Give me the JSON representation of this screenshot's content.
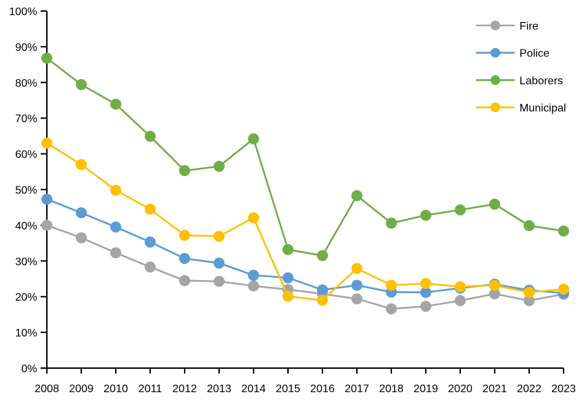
{
  "chart_data": {
    "type": "line",
    "title": "",
    "xlabel": "",
    "ylabel": "",
    "x": [
      2008,
      2009,
      2010,
      2011,
      2012,
      2013,
      2014,
      2015,
      2016,
      2017,
      2018,
      2019,
      2020,
      2021,
      2022,
      2023
    ],
    "series": [
      {
        "name": "Fire",
        "color": "#A5A5A5",
        "values": [
          40.0,
          36.5,
          32.3,
          28.3,
          24.5,
          24.3,
          23.0,
          22.0,
          20.8,
          19.4,
          16.6,
          17.3,
          18.9,
          20.8,
          18.9,
          20.7
        ]
      },
      {
        "name": "Police",
        "color": "#5B9BD5",
        "values": [
          47.3,
          43.5,
          39.5,
          35.3,
          30.7,
          29.4,
          26.0,
          25.3,
          21.9,
          23.2,
          21.3,
          21.2,
          22.4,
          23.5,
          21.8,
          21.0
        ]
      },
      {
        "name": "Laborers",
        "color": "#70AD47",
        "values": [
          86.8,
          79.4,
          73.9,
          64.9,
          55.3,
          56.5,
          64.2,
          33.2,
          31.5,
          48.3,
          40.6,
          42.8,
          44.3,
          45.9,
          39.9,
          38.4
        ]
      },
      {
        "name": "Municipal",
        "color": "#FFC000",
        "values": [
          63.0,
          57.0,
          49.8,
          44.5,
          37.2,
          36.9,
          42.1,
          20.1,
          19.0,
          27.9,
          23.2,
          23.7,
          22.8,
          23.2,
          21.2,
          22.1
        ]
      }
    ],
    "ylim": [
      0,
      100
    ],
    "y_tick_step": 10,
    "y_tick_labels": [
      "0%",
      "10%",
      "20%",
      "30%",
      "40%",
      "50%",
      "60%",
      "70%",
      "80%",
      "90%",
      "100%"
    ],
    "x_tick_labels": [
      "2008",
      "2009",
      "2010",
      "2011",
      "2012",
      "2013",
      "2014",
      "2015",
      "2016",
      "2017",
      "2018",
      "2019",
      "2020",
      "2021",
      "2022",
      "2023"
    ],
    "grid": false,
    "legend_position": "top-right",
    "legend_entries": [
      "Fire",
      "Police",
      "Laborers",
      "Municipal"
    ],
    "axis_color": "#000000",
    "background_color": "#FFFFFF"
  }
}
